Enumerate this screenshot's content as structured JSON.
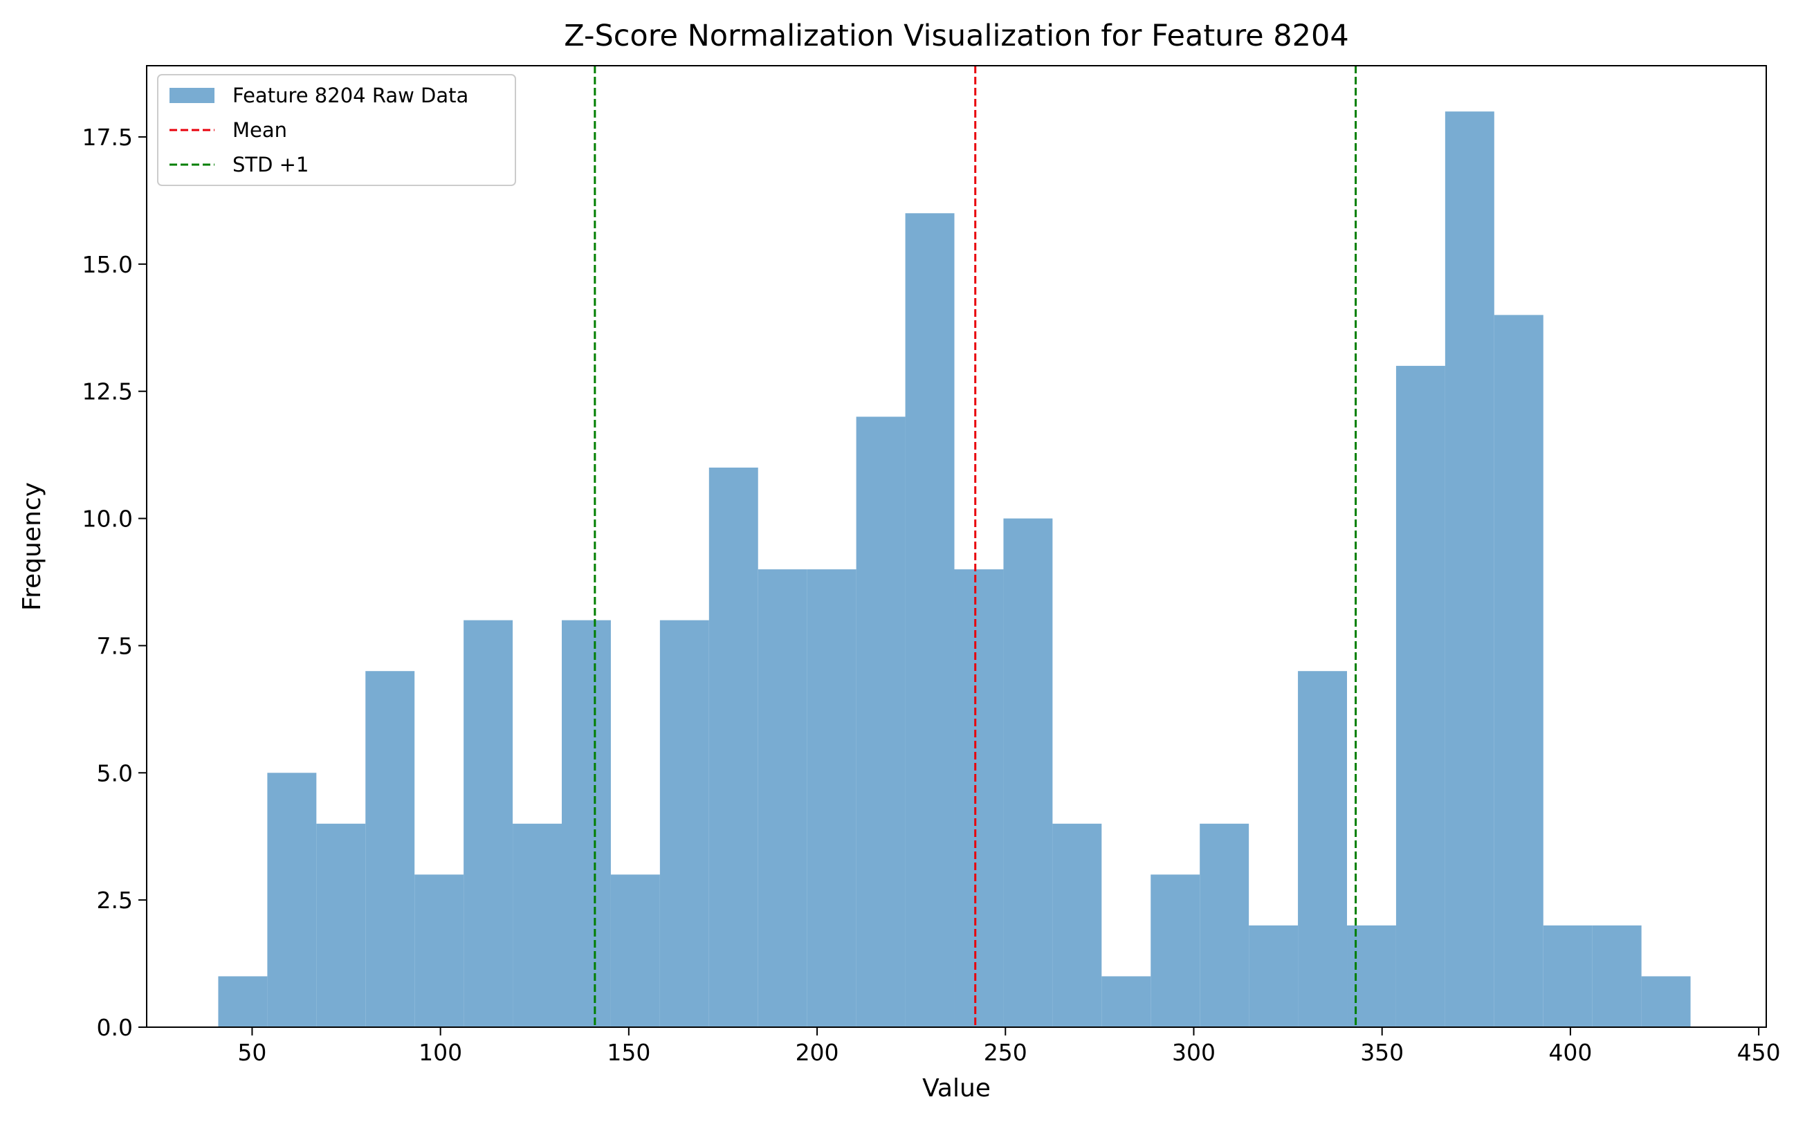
{
  "chart_data": {
    "type": "bar",
    "title": "Z-Score Normalization Visualization for Feature 8204",
    "xlabel": "Value",
    "ylabel": "Frequency",
    "xlim": [
      22,
      452
    ],
    "ylim": [
      0,
      18.9
    ],
    "xticks": [
      50,
      100,
      150,
      200,
      250,
      300,
      350,
      400,
      450
    ],
    "xtick_labels": [
      "50",
      "100",
      "150",
      "200",
      "250",
      "300",
      "350",
      "400",
      "450"
    ],
    "yticks": [
      0,
      2.5,
      5,
      7.5,
      10,
      12.5,
      15,
      17.5
    ],
    "ytick_labels": [
      "0.0",
      "2.5",
      "5.0",
      "7.5",
      "10.0",
      "12.5",
      "15.0",
      "17.5"
    ],
    "bin_start": 41,
    "bin_width": 13.03,
    "counts": [
      1,
      5,
      4,
      7,
      3,
      8,
      4,
      8,
      3,
      8,
      11,
      9,
      9,
      12,
      16,
      9,
      10,
      4,
      1,
      3,
      4,
      2,
      7,
      2,
      13,
      18,
      14,
      2,
      2,
      1
    ],
    "bar_color": "#79acd2",
    "mean": 242,
    "std_lines": [
      141,
      343
    ],
    "mean_color": "#e8000b",
    "std_color": "#007f00",
    "legend": {
      "placement": "top-left",
      "entries": [
        {
          "label": "Feature 8204 Raw Data",
          "kind": "patch",
          "color": "#79acd2"
        },
        {
          "label": "Mean",
          "kind": "dashed-line",
          "color": "#e8000b"
        },
        {
          "label": "STD +1",
          "kind": "dashed-line",
          "color": "#007f00"
        }
      ]
    },
    "grid": false
  }
}
